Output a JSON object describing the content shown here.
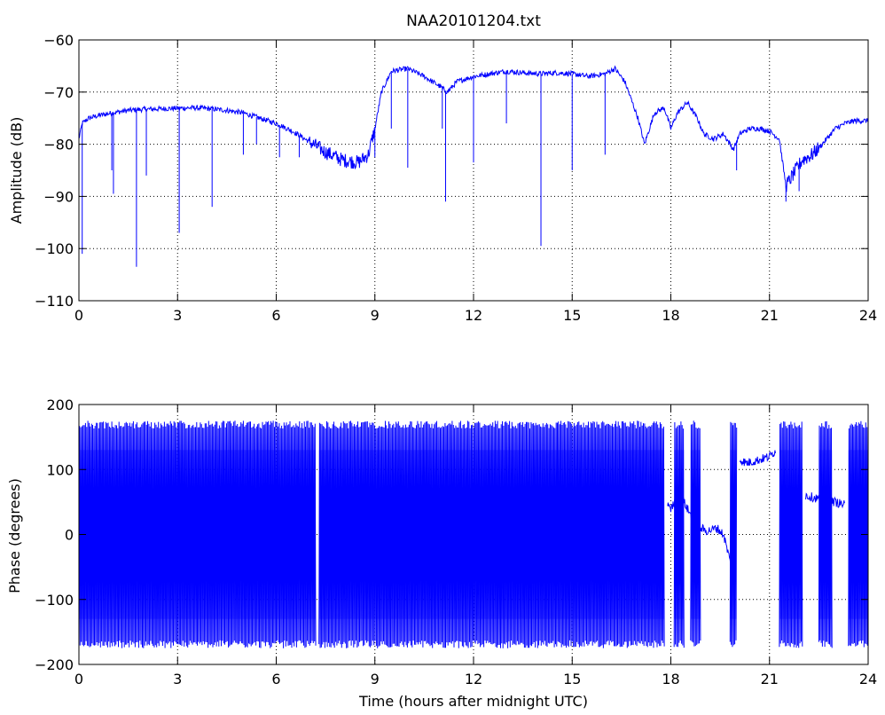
{
  "figure": {
    "background": "#ffffff",
    "line_color": "#0000ff",
    "axis_color": "#000000",
    "grid_color": "#000000"
  },
  "chart_data": [
    {
      "type": "line",
      "title": "NAA20101204.txt",
      "xlabel": "",
      "ylabel": "Amplitude (dB)",
      "xlim": [
        0,
        24
      ],
      "ylim": [
        -110,
        -60
      ],
      "xticks": [
        0,
        3,
        6,
        9,
        12,
        15,
        18,
        21,
        24
      ],
      "yticks": [
        -110,
        -100,
        -90,
        -80,
        -70,
        -60
      ],
      "ytick_labels": [
        "−110",
        "−100",
        "−90",
        "−80",
        "−70",
        "−60"
      ],
      "grid": true,
      "series": [
        {
          "x": [
            0.0,
            0.1,
            0.3,
            0.6,
            1.0,
            1.5,
            2.0,
            2.5,
            3.0,
            3.5,
            4.0,
            4.5,
            5.0,
            5.5,
            6.0,
            6.5,
            7.0,
            7.5,
            8.0,
            8.5,
            8.8,
            9.0,
            9.2,
            9.5,
            10.0,
            10.5,
            11.0,
            11.2,
            11.5,
            12.0,
            12.5,
            13.0,
            13.5,
            14.0,
            14.5,
            15.0,
            15.5,
            16.0,
            16.3,
            16.6,
            17.0,
            17.2,
            17.5,
            17.8,
            18.0,
            18.2,
            18.5,
            18.8,
            19.0,
            19.3,
            19.6,
            19.9,
            20.1,
            20.4,
            20.7,
            21.0,
            21.3,
            21.5,
            21.7,
            22.0,
            22.3,
            22.6,
            23.0,
            23.3,
            23.6,
            24.0
          ],
          "y": [
            -79,
            -76,
            -75,
            -74.5,
            -74,
            -73.5,
            -73.3,
            -73.2,
            -73.1,
            -73,
            -73.2,
            -73.5,
            -74,
            -75,
            -76,
            -77.5,
            -79.5,
            -81.5,
            -83,
            -83.5,
            -82,
            -77,
            -70,
            -66,
            -65.5,
            -67,
            -69,
            -70,
            -68,
            -67,
            -66.5,
            -66,
            -66.3,
            -66.5,
            -66.3,
            -66.5,
            -67,
            -66.5,
            -65.5,
            -68,
            -75,
            -80,
            -74,
            -73,
            -77,
            -74,
            -72,
            -75,
            -78,
            -79,
            -78,
            -81,
            -78,
            -77,
            -77,
            -77.5,
            -79,
            -88,
            -86,
            -83,
            -82,
            -80,
            -77,
            -76,
            -75.5,
            -75.5
          ]
        }
      ],
      "spikes": [
        {
          "x": 0.1,
          "y": -101
        },
        {
          "x": 1.0,
          "y": -85
        },
        {
          "x": 1.05,
          "y": -89.5
        },
        {
          "x": 1.75,
          "y": -103.5
        },
        {
          "x": 2.05,
          "y": -86
        },
        {
          "x": 3.05,
          "y": -97
        },
        {
          "x": 4.05,
          "y": -92
        },
        {
          "x": 5.0,
          "y": -82
        },
        {
          "x": 5.4,
          "y": -80
        },
        {
          "x": 6.1,
          "y": -82.5
        },
        {
          "x": 6.7,
          "y": -82.5
        },
        {
          "x": 9.0,
          "y": -82.5
        },
        {
          "x": 9.5,
          "y": -77
        },
        {
          "x": 10.0,
          "y": -84.5
        },
        {
          "x": 11.05,
          "y": -77
        },
        {
          "x": 11.15,
          "y": -91
        },
        {
          "x": 12.0,
          "y": -83.5
        },
        {
          "x": 13.0,
          "y": -76
        },
        {
          "x": 14.05,
          "y": -99.5
        },
        {
          "x": 15.0,
          "y": -85
        },
        {
          "x": 16.0,
          "y": -82
        },
        {
          "x": 20.0,
          "y": -85
        },
        {
          "x": 21.5,
          "y": -91
        },
        {
          "x": 21.9,
          "y": -89
        }
      ]
    },
    {
      "type": "line",
      "title": "",
      "xlabel": "Time (hours after midnight UTC)",
      "ylabel": "Phase (degrees)",
      "xlim": [
        0,
        24
      ],
      "ylim": [
        -200,
        200
      ],
      "xticks": [
        0,
        3,
        6,
        9,
        12,
        15,
        18,
        21,
        24
      ],
      "yticks": [
        -200,
        -100,
        0,
        100,
        200
      ],
      "ytick_labels": [
        "−200",
        "−100",
        "0",
        "100",
        "200"
      ],
      "grid": true,
      "wrapping_intervals": [
        [
          0,
          7.2
        ],
        [
          7.3,
          17.8
        ],
        [
          18.1,
          18.4
        ],
        [
          18.6,
          18.9
        ],
        [
          19.8,
          20.0
        ],
        [
          21.3,
          22.0
        ],
        [
          22.5,
          22.9
        ],
        [
          23.4,
          24
        ]
      ],
      "stable_segments": [
        {
          "x": [
            17.9,
            18.0,
            18.3,
            18.6,
            18.9,
            19.1
          ],
          "y": [
            50,
            40,
            60,
            30,
            10,
            5
          ]
        },
        {
          "x": [
            19.1,
            19.4,
            19.6,
            19.8,
            20.0
          ],
          "y": [
            5,
            10,
            0,
            -40,
            -70
          ]
        },
        {
          "x": [
            20.1,
            20.3,
            20.7,
            21.0,
            21.2
          ],
          "y": [
            115,
            110,
            115,
            120,
            130
          ]
        },
        {
          "x": [
            22.1,
            22.5,
            23.0,
            23.3
          ],
          "y": [
            60,
            55,
            50,
            45
          ]
        }
      ]
    }
  ]
}
